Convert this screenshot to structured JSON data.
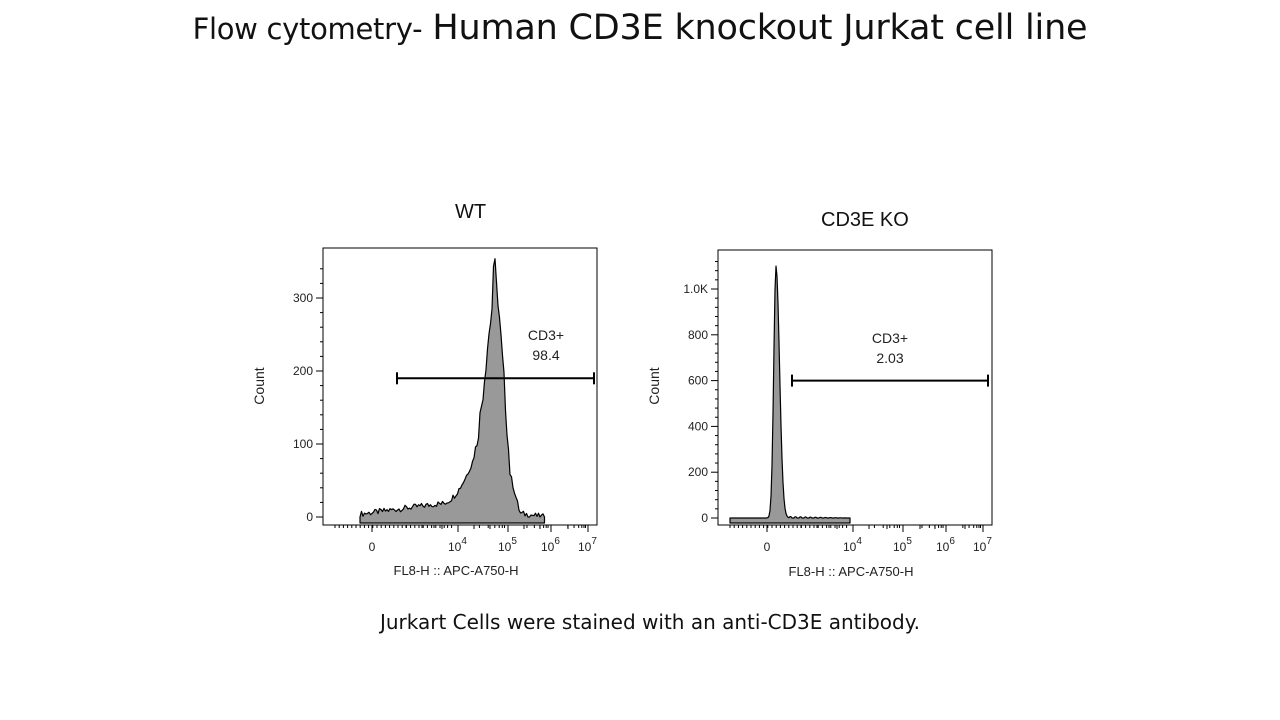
{
  "title": {
    "prefix": "Flow cytometry-",
    "main": "Human CD3E knockout Jurkat cell line"
  },
  "caption": "Jurkart Cells were stained with an anti-CD3E antibody.",
  "colors": {
    "fill": "#999999",
    "stroke": "#000000",
    "frame": "#000000"
  },
  "chart_data": [
    {
      "type": "area",
      "panel_label": "WT",
      "xlabel": "FL8-H :: APC-A750-H",
      "ylabel": "Count",
      "x_scale": "biexponential",
      "y_ticks": [
        0,
        100,
        200,
        300
      ],
      "y_tick_labels": [
        "0",
        "100",
        "200",
        "300"
      ],
      "ylim": [
        0,
        350
      ],
      "x_tick_labels": [
        {
          "base": "0",
          "exp": ""
        },
        {
          "base": "10",
          "exp": "4"
        },
        {
          "base": "10",
          "exp": "5"
        },
        {
          "base": "10",
          "exp": "6"
        },
        {
          "base": "10",
          "exp": "7"
        }
      ],
      "gate": {
        "name": "CD3+",
        "percent": "98.4",
        "y_level": 190
      },
      "distribution": {
        "peak_count": 345,
        "peak_x": "~5×10^4",
        "description_points": [
          {
            "x": "-300",
            "count": 8
          },
          {
            "x": "10^3",
            "count": 15
          },
          {
            "x": "10^4",
            "count": 30
          },
          {
            "x": "2×10^4",
            "count": 70
          },
          {
            "x": "3×10^4",
            "count": 160
          },
          {
            "x": "4×10^4",
            "count": 280
          },
          {
            "x": "5×10^4",
            "count": 345
          },
          {
            "x": "7×10^4",
            "count": 230
          },
          {
            "x": "10^5",
            "count": 20
          },
          {
            "x": "2×10^5",
            "count": 0
          }
        ]
      }
    },
    {
      "type": "area",
      "panel_label": "CD3E KO",
      "xlabel": "FL8-H :: APC-A750-H",
      "ylabel": "Count",
      "x_scale": "biexponential",
      "y_ticks": [
        0,
        200,
        400,
        600,
        800,
        1000
      ],
      "y_tick_labels": [
        "0",
        "200",
        "400",
        "600",
        "800",
        "1.0K"
      ],
      "ylim": [
        0,
        1150
      ],
      "x_tick_labels": [
        {
          "base": "0",
          "exp": ""
        },
        {
          "base": "10",
          "exp": "4"
        },
        {
          "base": "10",
          "exp": "5"
        },
        {
          "base": "10",
          "exp": "6"
        },
        {
          "base": "10",
          "exp": "7"
        }
      ],
      "gate": {
        "name": "CD3+",
        "percent": "2.03",
        "y_level": 600
      },
      "distribution": {
        "peak_count": 1100,
        "peak_x": "~100",
        "description_points": [
          {
            "x": "-200",
            "count": 0
          },
          {
            "x": "0",
            "count": 50
          },
          {
            "x": "100",
            "count": 1100
          },
          {
            "x": "300",
            "count": 60
          },
          {
            "x": "10^3",
            "count": 5
          },
          {
            "x": "10^4",
            "count": 0
          }
        ]
      }
    }
  ]
}
